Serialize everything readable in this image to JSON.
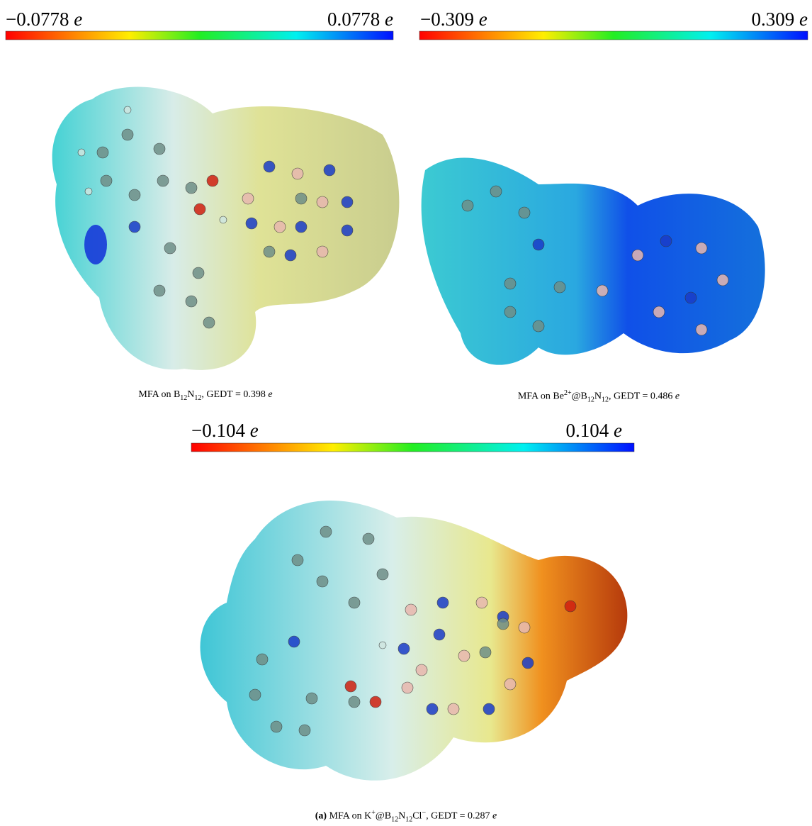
{
  "panels": [
    {
      "colorbar": {
        "min": "−0.0778",
        "max": "0.0778",
        "unit": "e"
      },
      "caption": [
        "MFA on B",
        "12",
        "N",
        "12",
        ", GEDT = 0.398 ",
        "e"
      ]
    },
    {
      "colorbar": {
        "min": "−0.309",
        "max": "0.309",
        "unit": "e"
      },
      "caption": [
        "MFA on Be",
        "2+",
        "@B",
        "12",
        "N",
        "12",
        ", GEDT = 0.486 ",
        "e"
      ]
    },
    {
      "colorbar": {
        "min": "−0.104",
        "max": "0.104",
        "unit": "e"
      },
      "caption": [
        "(a)",
        " MFA on K",
        "+",
        "@B",
        "12",
        "N",
        "12",
        "Cl",
        "−",
        ", GEDT = 0.287 ",
        "e"
      ]
    }
  ]
}
